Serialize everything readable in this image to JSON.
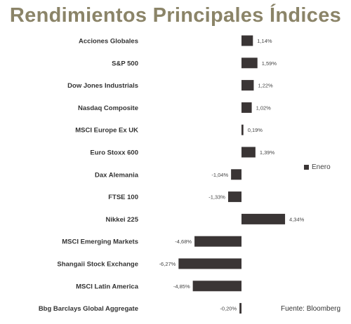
{
  "title": "Rendimientos Principales Índices",
  "source": "Fuente: Bloomberg",
  "legend": {
    "label": "Enero"
  },
  "colors": {
    "bar": "#3a3535",
    "title": "#8b8468"
  },
  "chart_data": {
    "type": "bar",
    "orientation": "horizontal",
    "categories": [
      "Acciones Globales",
      "S&P 500",
      "Dow Jones Industrials",
      "Nasdaq Composite",
      "MSCI Europe Ex UK",
      "Euro Stoxx 600",
      "Dax Alemania",
      "FTSE 100",
      "Nikkei 225",
      "MSCI Emerging Markets",
      "Shangaii Stock Exchange",
      "MSCI Latin America",
      "Bbg Barclays Global Aggregate"
    ],
    "series": [
      {
        "name": "Enero",
        "values": [
          1.14,
          1.59,
          1.22,
          1.02,
          0.19,
          1.39,
          -1.04,
          -1.33,
          4.34,
          -4.68,
          -6.27,
          -4.85,
          -0.2
        ]
      }
    ],
    "value_labels": [
      "1,14%",
      "1,59%",
      "1,22%",
      "1,02%",
      "0,19%",
      "1,39%",
      "-1,04%",
      "-1,33%",
      "4,34%",
      "-4,68%",
      "-6,27%",
      "-4,85%",
      "-0,20%"
    ],
    "legend_position": "right",
    "grid": false
  }
}
